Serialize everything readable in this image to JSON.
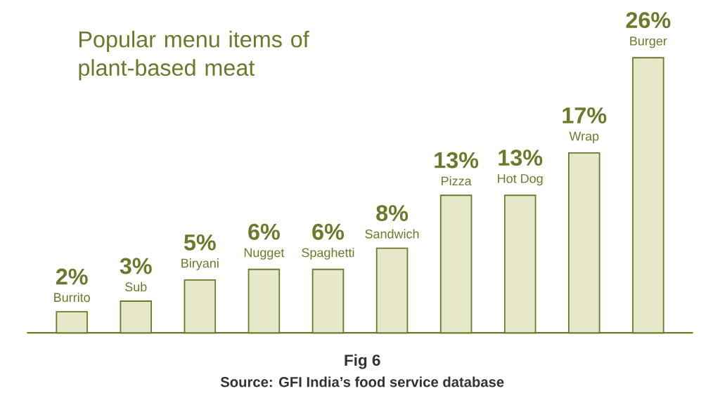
{
  "chart_data": {
    "type": "bar",
    "title": "Popular menu items of plant-based meat",
    "categories": [
      "Burrito",
      "Sub",
      "Biryani",
      "Nugget",
      "Spaghetti",
      "Sandwich",
      "Pizza",
      "Hot Dog",
      "Wrap",
      "Burger"
    ],
    "values": [
      2,
      3,
      5,
      6,
      6,
      8,
      13,
      13,
      17,
      26
    ],
    "value_labels": [
      "2%",
      "3%",
      "5%",
      "6%",
      "6%",
      "8%",
      "13%",
      "13%",
      "17%",
      "26%"
    ],
    "color": "#e6e8c9",
    "annotations": [
      "Fig 6",
      "Source: GFI India’s food service database"
    ]
  }
}
